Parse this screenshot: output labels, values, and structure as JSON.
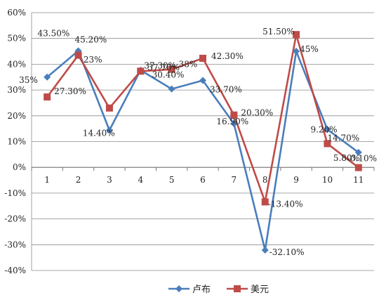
{
  "chart_data": {
    "type": "line",
    "x": [
      "1",
      "2",
      "3",
      "4",
      "5",
      "6",
      "7",
      "8",
      "9",
      "10",
      "11"
    ],
    "ylim": [
      -0.4,
      0.6
    ],
    "yticks": [
      -0.4,
      -0.3,
      -0.2,
      -0.1,
      0.0,
      0.1,
      0.2,
      0.3,
      0.4,
      0.5,
      0.6
    ],
    "ytick_labels": [
      "-40%",
      "-30%",
      "-20%",
      "-10%",
      "0%",
      "10%",
      "20%",
      "30%",
      "40%",
      "50%",
      "60%"
    ],
    "grid": "horizontal",
    "legend_position": "bottom",
    "series": [
      {
        "name": "卢布",
        "color": "#4a7ebb",
        "marker": "diamond",
        "values": [
          0.35,
          0.452,
          0.144,
          0.377,
          0.304,
          0.337,
          0.169,
          -0.321,
          0.45,
          0.147,
          0.058
        ],
        "labels": [
          "35%",
          "45.20%",
          "14.40%",
          "37.70%",
          "30.40%",
          "33.70%",
          "16.90%",
          "-32.10%",
          "45%",
          "14.70%",
          "5.80%"
        ]
      },
      {
        "name": "美元",
        "color": "#be4b48",
        "marker": "square",
        "values": [
          0.273,
          0.435,
          0.23,
          0.373,
          0.38,
          0.423,
          0.203,
          -0.134,
          0.515,
          0.092,
          -0.001
        ],
        "labels": [
          "27.30%",
          "43.50%",
          "23%",
          "37.30%",
          "38%",
          "42.30%",
          "20.30%",
          "-13.40%",
          "51.50%",
          "9.20%",
          "-0.10%"
        ]
      }
    ]
  }
}
